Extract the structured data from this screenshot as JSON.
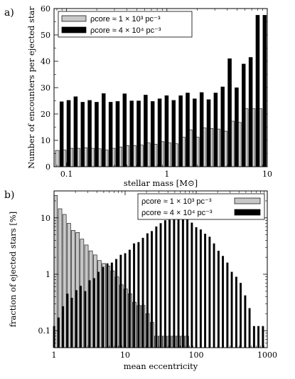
{
  "chart_data": [
    {
      "panel_label": "a)",
      "type": "bar",
      "xlabel": "stellar mass [M⊙]",
      "ylabel": "Number of encounters per ejected star",
      "xscale": "log",
      "yscale": "linear",
      "xlim": [
        0.075,
        10.0
      ],
      "ylim": [
        0,
        60
      ],
      "xticks": [
        {
          "v": 0.1,
          "label": "0.1"
        },
        {
          "v": 1,
          "label": "1"
        },
        {
          "v": 10,
          "label": "10"
        }
      ],
      "yticks": [
        {
          "v": 0,
          "label": "0"
        },
        {
          "v": 10,
          "label": "10"
        },
        {
          "v": 20,
          "label": "20"
        },
        {
          "v": 30,
          "label": "30"
        },
        {
          "v": 40,
          "label": "40"
        },
        {
          "v": 50,
          "label": "50"
        },
        {
          "v": 60,
          "label": "60"
        }
      ],
      "legend_position": "top-left",
      "series": [
        {
          "name": "ρcore ≈ 1 × 10³ pc⁻³",
          "fill": "#c8c8c8",
          "x": [
            0.0815,
            0.0957,
            0.1124,
            0.132,
            0.155,
            0.182,
            0.2137,
            0.2509,
            0.2946,
            0.346,
            0.4063,
            0.477,
            0.5602,
            0.6578,
            0.7724,
            0.907,
            1.065,
            1.2506,
            1.4685,
            1.7244,
            2.0249,
            2.3777,
            2.792,
            3.2786,
            3.8499,
            4.5208,
            5.3086,
            6.2337,
            7.32,
            8.5956
          ],
          "values": [
            6.2,
            6.3,
            7.0,
            7.0,
            7.2,
            7.0,
            6.8,
            6.3,
            7.0,
            7.5,
            8.0,
            8.0,
            8.2,
            9.0,
            8.5,
            9.5,
            9.0,
            8.7,
            11.2,
            14.0,
            11.2,
            14.7,
            14.5,
            14.3,
            13.5,
            17.3,
            16.8,
            22.0,
            22.0,
            22.0
          ]
        },
        {
          "name": "ρcore ≈ 4 × 10⁴ pc⁻³",
          "fill": "#000000",
          "x": [
            0.0815,
            0.0957,
            0.1124,
            0.132,
            0.155,
            0.182,
            0.2137,
            0.2509,
            0.2946,
            0.346,
            0.4063,
            0.477,
            0.5602,
            0.6578,
            0.7724,
            0.907,
            1.065,
            1.2506,
            1.4685,
            1.7244,
            2.0249,
            2.3777,
            2.792,
            3.2786,
            3.8499,
            4.5208,
            5.3086,
            6.2337,
            7.32,
            8.5956
          ],
          "values": [
            24.7,
            25.2,
            26.6,
            24.5,
            25.2,
            24.5,
            27.8,
            24.5,
            24.8,
            27.7,
            25.0,
            25.0,
            27.2,
            24.8,
            25.8,
            27.0,
            25.2,
            27.0,
            28.0,
            25.8,
            28.2,
            25.5,
            28.0,
            30.3,
            41.0,
            30.0,
            39.0,
            41.5,
            57.5,
            57.5
          ]
        }
      ]
    },
    {
      "panel_label": "b)",
      "type": "bar",
      "xlabel": "mean eccentricity",
      "ylabel": "fraction of ejected stars [%]",
      "xscale": "log",
      "yscale": "log",
      "xlim": [
        1,
        1000
      ],
      "ylim": [
        0.05,
        30
      ],
      "xticks": [
        {
          "v": 1,
          "label": "1"
        },
        {
          "v": 10,
          "label": "10"
        },
        {
          "v": 100,
          "label": "100"
        },
        {
          "v": 1000,
          "label": "1000"
        }
      ],
      "yticks": [
        {
          "v": 0.1,
          "label": "0.1"
        },
        {
          "v": 1,
          "label": "1"
        },
        {
          "v": 10,
          "label": "10"
        }
      ],
      "legend_position": "top-right",
      "series": [
        {
          "name": "ρcore ≈ 1 × 10³ pc⁻³",
          "fill": "#c8c8c8",
          "x": [
            1.03,
            1.19,
            1.37,
            1.58,
            1.82,
            2.1,
            2.42,
            2.79,
            3.21,
            3.7,
            4.26,
            4.91,
            5.66,
            6.52,
            7.51,
            8.65,
            9.97,
            11.49,
            13.24,
            15.26,
            17.58,
            20.26,
            23.34,
            26.9,
            30.99,
            35.71,
            41.15,
            47.42,
            54.63,
            62.95,
            72.54
          ],
          "values": [
            25.0,
            14.5,
            11.5,
            8.0,
            6.0,
            5.5,
            4.2,
            3.3,
            2.6,
            2.2,
            1.75,
            1.55,
            1.4,
            1.15,
            0.9,
            0.65,
            0.55,
            0.45,
            0.32,
            0.28,
            0.28,
            0.2,
            0.14,
            0.08,
            0.08,
            0.08,
            0.08,
            0.08,
            0.08,
            0.08,
            0.08
          ]
        },
        {
          "name": "ρcore ≈ 4 × 10⁴ pc⁻³",
          "fill": "#000000",
          "x": [
            1.0,
            1.155,
            1.334,
            1.54,
            1.778,
            2.054,
            2.371,
            2.738,
            3.162,
            3.652,
            4.217,
            4.87,
            5.623,
            6.494,
            7.499,
            8.66,
            10.0,
            11.55,
            13.34,
            15.4,
            17.78,
            20.54,
            23.71,
            27.38,
            31.62,
            36.52,
            42.17,
            48.7,
            56.23,
            64.94,
            74.99,
            86.6,
            100.0,
            115.5,
            133.4,
            154.0,
            177.8,
            205.4,
            237.1,
            273.8,
            316.2,
            365.2,
            421.7,
            487.0,
            562.3,
            649.4,
            749.9,
            866.0
          ],
          "values": [
            0.12,
            0.17,
            0.27,
            0.45,
            0.38,
            0.52,
            0.62,
            0.5,
            0.78,
            0.85,
            1.1,
            1.35,
            1.55,
            1.6,
            1.85,
            2.2,
            2.35,
            2.7,
            3.5,
            3.7,
            4.4,
            5.3,
            5.8,
            7.0,
            8.0,
            9.0,
            9.2,
            9.8,
            10.2,
            10.0,
            9.3,
            8.2,
            6.8,
            6.2,
            5.2,
            4.6,
            3.5,
            2.6,
            2.1,
            1.6,
            1.1,
            0.9,
            0.7,
            0.42,
            0.25,
            0.12,
            0.12,
            0.12
          ]
        }
      ]
    }
  ]
}
